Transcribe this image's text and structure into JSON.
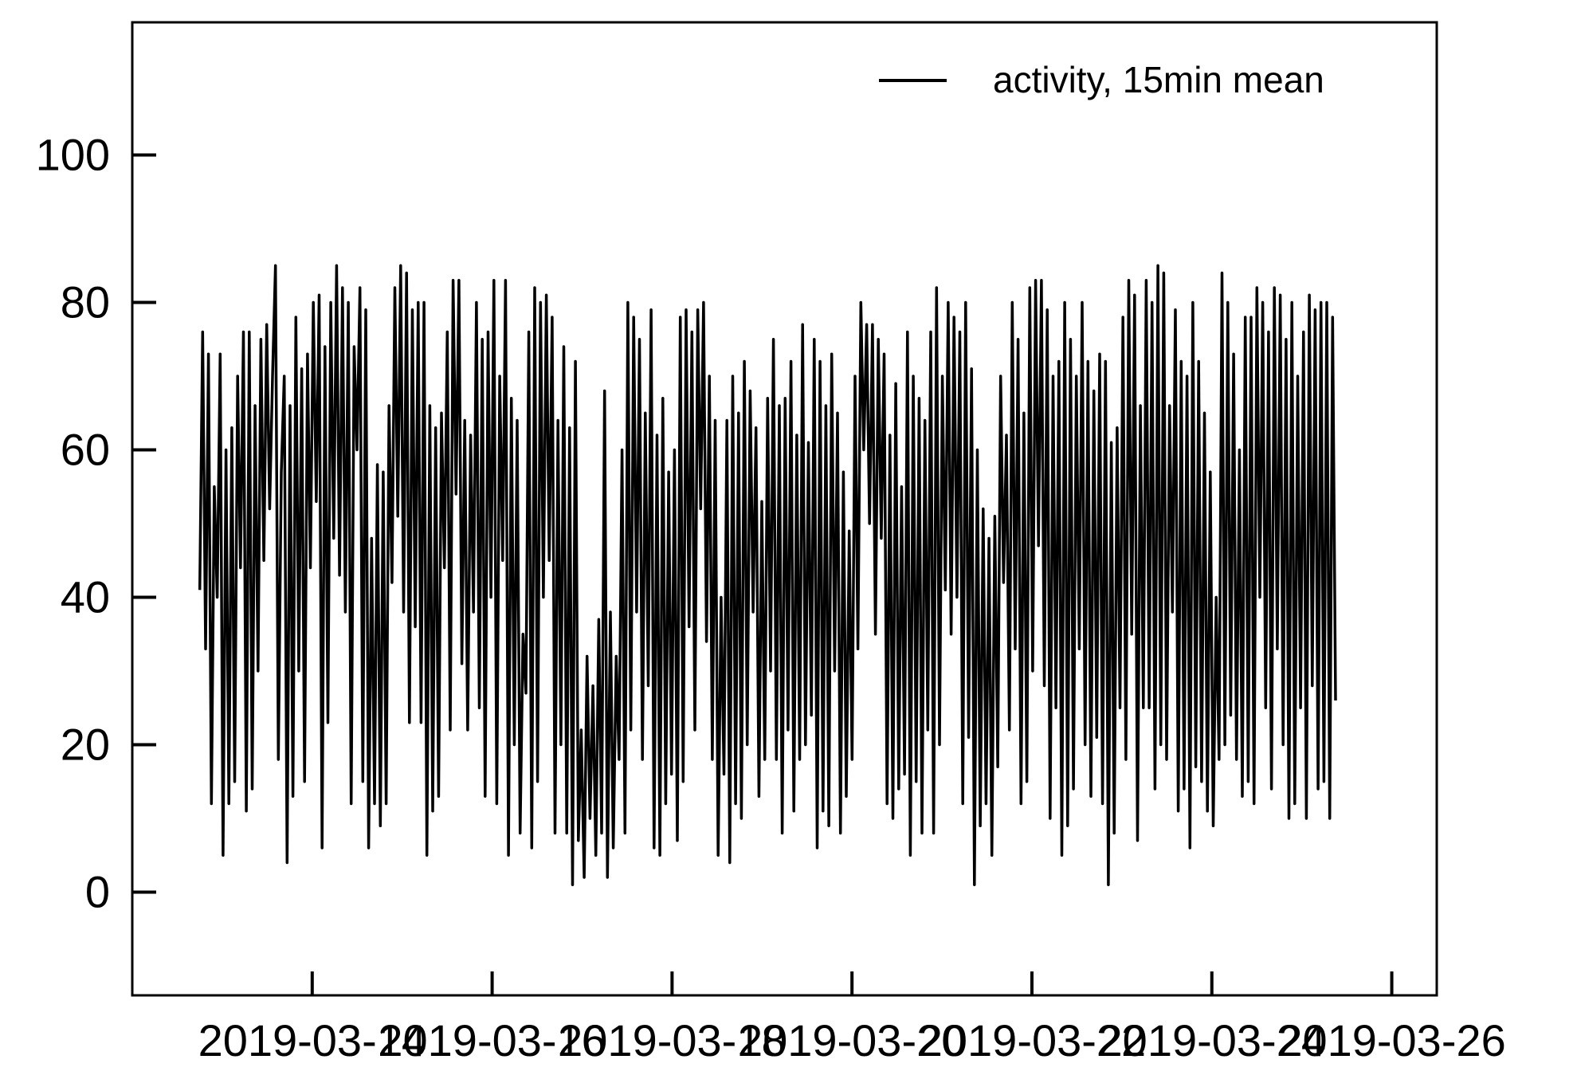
{
  "chart_data": {
    "type": "line",
    "title": "",
    "xlabel": "",
    "ylabel": "",
    "xlim": [
      "2019-03-12",
      "2019-03-26 12:00"
    ],
    "ylim": [
      -14,
      118
    ],
    "x_ticks": [
      "2019-03-14",
      "2019-03-16",
      "2019-03-18",
      "2019-03-20",
      "2019-03-22",
      "2019-03-24",
      "2019-03-26"
    ],
    "x_tick_labels": [
      "2019-03-14",
      "2019-03-16",
      "2019-03-18",
      "2019-03-20",
      "2019-03-22",
      "2019-03-24",
      "2019-03-26"
    ],
    "y_ticks": [
      0,
      20,
      40,
      60,
      80,
      100
    ],
    "y_tick_labels": [
      "0",
      "20",
      "40",
      "60",
      "80",
      "100"
    ],
    "grid": false,
    "legend": {
      "position": "top-right",
      "entries": [
        "activity, 15min mean"
      ]
    },
    "series": [
      {
        "name": "activity, 15min mean",
        "color": "#000000",
        "x_start": "2019-03-12 18:00",
        "x_end": "2019-03-25 09:00",
        "values": [
          41,
          76,
          33,
          73,
          12,
          55,
          40,
          73,
          5,
          60,
          12,
          63,
          15,
          70,
          44,
          76,
          11,
          76,
          14,
          66,
          30,
          75,
          45,
          77,
          52,
          70,
          85,
          18,
          57,
          70,
          4,
          66,
          13,
          78,
          30,
          71,
          15,
          73,
          44,
          80,
          53,
          81,
          6,
          74,
          23,
          80,
          48,
          85,
          43,
          82,
          38,
          80,
          12,
          74,
          60,
          82,
          15,
          79,
          6,
          48,
          12,
          58,
          9,
          57,
          12,
          66,
          42,
          82,
          51,
          85,
          38,
          84,
          23,
          79,
          36,
          80,
          23,
          80,
          5,
          66,
          11,
          63,
          13,
          65,
          44,
          76,
          22,
          83,
          54,
          83,
          31,
          64,
          22,
          62,
          38,
          80,
          25,
          75,
          13,
          76,
          40,
          83,
          12,
          70,
          45,
          83,
          5,
          67,
          20,
          64,
          8,
          35,
          27,
          76,
          6,
          82,
          15,
          80,
          40,
          81,
          45,
          78,
          8,
          64,
          20,
          74,
          8,
          63,
          1,
          72,
          7,
          22,
          2,
          32,
          10,
          28,
          5,
          37,
          8,
          68,
          2,
          38,
          6,
          32,
          18,
          60,
          8,
          80,
          22,
          78,
          38,
          75,
          18,
          65,
          28,
          79,
          6,
          62,
          5,
          67,
          12,
          57,
          16,
          60,
          7,
          78,
          15,
          79,
          36,
          76,
          22,
          79,
          52,
          80,
          34,
          70,
          18,
          64,
          5,
          40,
          16,
          64,
          4,
          70,
          12,
          65,
          10,
          72,
          20,
          68,
          38,
          63,
          13,
          53,
          18,
          67,
          30,
          75,
          18,
          66,
          8,
          67,
          22,
          72,
          11,
          62,
          18,
          77,
          20,
          61,
          24,
          75,
          6,
          72,
          11,
          66,
          9,
          73,
          30,
          65,
          8,
          57,
          13,
          49,
          18,
          70,
          33,
          80,
          60,
          77,
          50,
          77,
          35,
          75,
          48,
          73,
          12,
          62,
          10,
          69,
          14,
          55,
          16,
          76,
          5,
          70,
          15,
          67,
          8,
          64,
          22,
          76,
          8,
          82,
          20,
          70,
          41,
          80,
          35,
          78,
          40,
          76,
          12,
          80,
          21,
          71,
          1,
          60,
          9,
          52,
          12,
          48,
          5,
          51,
          17,
          70,
          42,
          62,
          22,
          80,
          33,
          75,
          12,
          65,
          15,
          82,
          30,
          83,
          47,
          83,
          28,
          79,
          10,
          70,
          25,
          72,
          5,
          80,
          9,
          75,
          14,
          70,
          33,
          80,
          20,
          72,
          13,
          68,
          21,
          73,
          12,
          72,
          1,
          61,
          8,
          63,
          25,
          78,
          18,
          83,
          35,
          81,
          7,
          66,
          25,
          83,
          25,
          80,
          14,
          85,
          20,
          84,
          18,
          66,
          38,
          79,
          11,
          72,
          14,
          70,
          6,
          80,
          17,
          72,
          15,
          65,
          11,
          57,
          9,
          40,
          18,
          84,
          20,
          80,
          24,
          73,
          18,
          60,
          13,
          78,
          15,
          78,
          12,
          82,
          40,
          80,
          25,
          76,
          14,
          82,
          33,
          81,
          20,
          75,
          10,
          80,
          12,
          70,
          25,
          76,
          10,
          81,
          28,
          79,
          14,
          80,
          15,
          80,
          10,
          78,
          26
        ]
      }
    ]
  }
}
